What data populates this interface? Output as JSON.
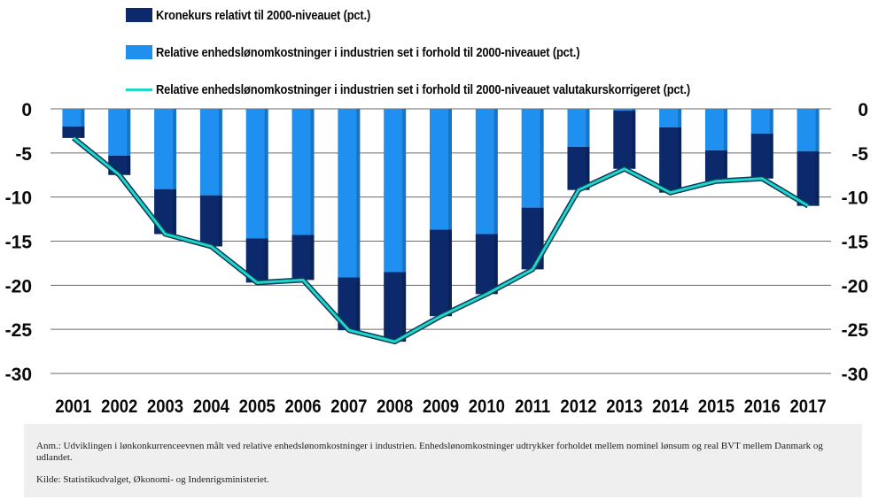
{
  "chart_data": {
    "type": "bar",
    "categories": [
      "2001",
      "2002",
      "2003",
      "2004",
      "2005",
      "2006",
      "2007",
      "2008",
      "2009",
      "2010",
      "2011",
      "2012",
      "2013",
      "2014",
      "2015",
      "2016",
      "2017"
    ],
    "series": [
      {
        "name": "Kronekurs relativt til 2000-niveauet (pct.)",
        "kind": "bar-stacked-bottom",
        "color": "#0c2a6b",
        "values": [
          -1.3,
          -2.2,
          -5.1,
          -5.8,
          -5.0,
          -5.1,
          -6.0,
          -7.9,
          -9.8,
          -6.8,
          -7.0,
          -4.9,
          -6.6,
          -7.4,
          -3.5,
          -5.1,
          -6.2
        ]
      },
      {
        "name": "Relative enhedslønomkostninger i industrien set i forhold til 2000-niveauet (pct.)",
        "kind": "bar-stacked-top",
        "color": "#1f8ff0",
        "values": [
          -2.0,
          -5.3,
          -9.1,
          -9.8,
          -14.7,
          -14.3,
          -19.1,
          -18.5,
          -13.7,
          -14.2,
          -11.2,
          -4.3,
          -0.2,
          -2.1,
          -4.7,
          -2.8,
          -4.8
        ]
      },
      {
        "name": "Relative enhedslønomkostninger i industrien set i forhold til 2000-niveauet valutakurskorrigeret (pct.)",
        "kind": "line",
        "color": "#1fd6c9",
        "values": [
          -3.3,
          -7.5,
          -14.2,
          -15.6,
          -19.7,
          -19.4,
          -25.1,
          -26.4,
          -23.5,
          -21.0,
          -18.2,
          -9.2,
          -6.8,
          -9.5,
          -8.2,
          -7.9,
          -11.0
        ]
      }
    ],
    "ylim": [
      -30,
      0
    ],
    "yticks": [
      0,
      -5,
      -10,
      -15,
      -20,
      -25,
      -30
    ],
    "ytick_labels": [
      "0",
      "-5",
      "-10",
      "-15",
      "-20",
      "-25",
      "-30"
    ],
    "grid": true,
    "legend_position": "top-left",
    "xlabel": "",
    "ylabel": ""
  },
  "note": {
    "anm": "Anm.: Udviklingen i lønkonkurrenceevnen målt ved relative enhedslønomkostninger i industrien. Enhedslønomkostninger udtrykker forholdet mellem nominel lønsum og real BVT mellem Danmark og udlandet.",
    "kilde": "Kilde: Statistikudvalget, Økonomi- og Indenrigsministeriet."
  }
}
